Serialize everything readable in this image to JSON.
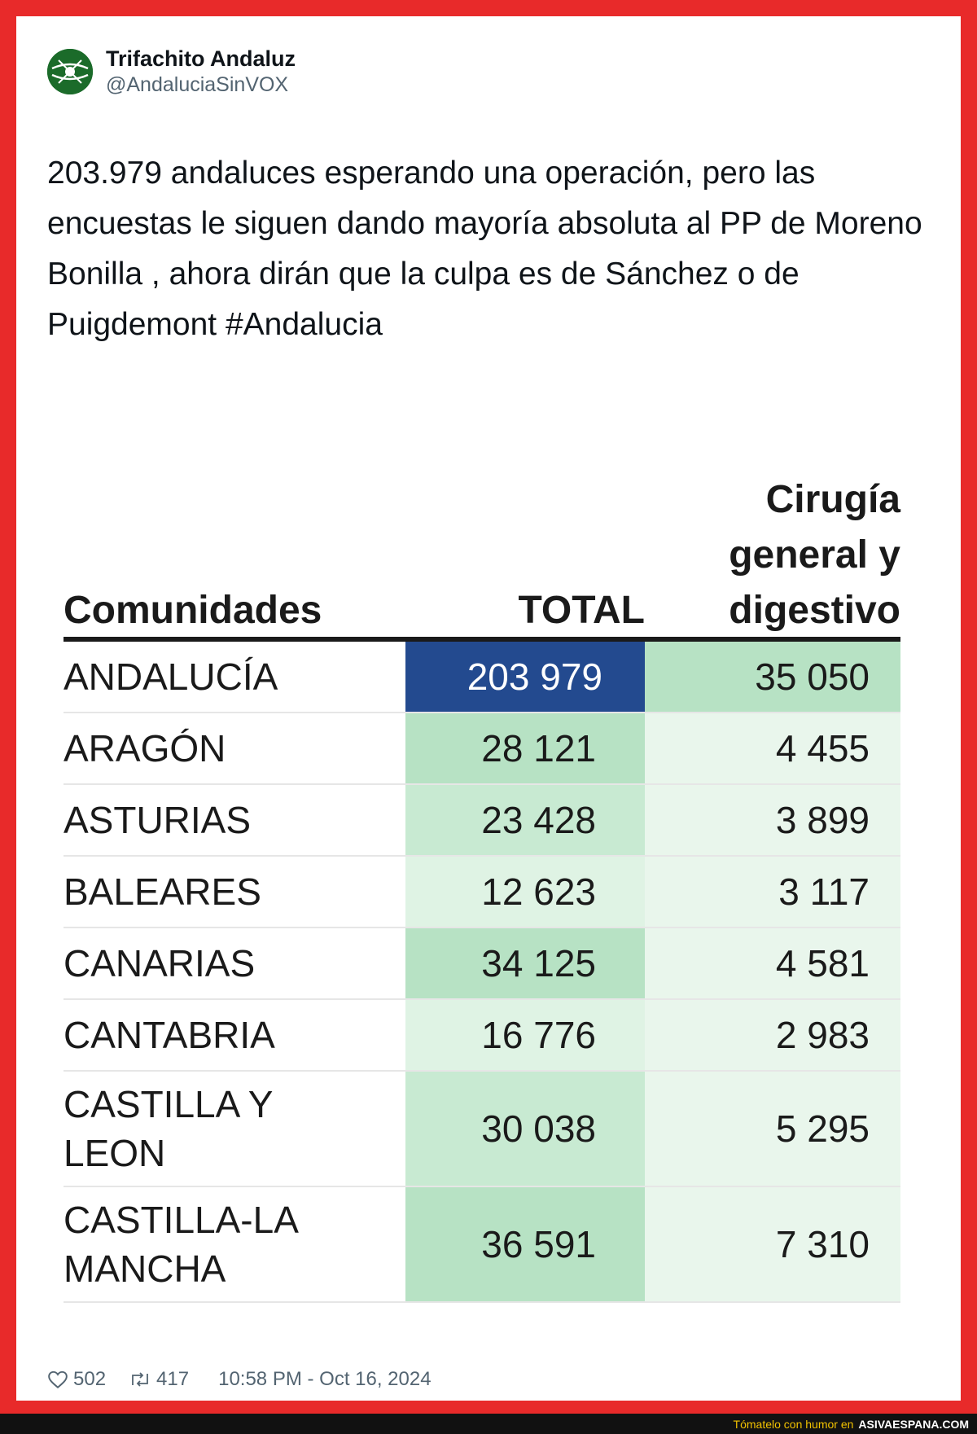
{
  "author": {
    "display_name": "Trifachito Andaluz",
    "handle": "@AndaluciaSinVOX"
  },
  "tweet": {
    "text": "203.979 andaluces esperando una operación, pero las encuestas le siguen dando mayoría absoluta al PP de Moreno Bonilla , ahora dirán que la culpa es de Sánchez o de Puigdemont #Andalucia"
  },
  "table": {
    "headers": {
      "name": "Comunidades",
      "total": "TOTAL",
      "cirugia": "Cirugía general y digestivo"
    },
    "rows": [
      {
        "name": "ANDALUCÍA",
        "total": "203 979",
        "cirugia": "35 050"
      },
      {
        "name": "ARAGÓN",
        "total": "28 121",
        "cirugia": "4 455"
      },
      {
        "name": "ASTURIAS",
        "total": "23 428",
        "cirugia": "3 899"
      },
      {
        "name": "BALEARES",
        "total": "12 623",
        "cirugia": "3 117"
      },
      {
        "name": "CANARIAS",
        "total": "34 125",
        "cirugia": "4 581"
      },
      {
        "name": "CANTABRIA",
        "total": "16 776",
        "cirugia": "2 983"
      },
      {
        "name": "CASTILLA Y LEON",
        "total": "30 038",
        "cirugia": "5 295"
      },
      {
        "name": "CASTILLA-LA MANCHA",
        "total": "36 591",
        "cirugia": "7 310"
      }
    ],
    "colors": {
      "highlight": "#234a8f",
      "total_strong": "#b7e2c4",
      "total_mid": "#c8ead2",
      "total_light": "#dff3e4",
      "cir_strong": "#b7e2c4",
      "cir_light": "#e9f6ec"
    }
  },
  "stats": {
    "likes": "502",
    "retweets": "417",
    "timestamp": "10:58 PM - Oct 16, 2024"
  },
  "footer": {
    "text": "Tómatelo con humor en",
    "site": "ASIVAESPANA.COM"
  }
}
